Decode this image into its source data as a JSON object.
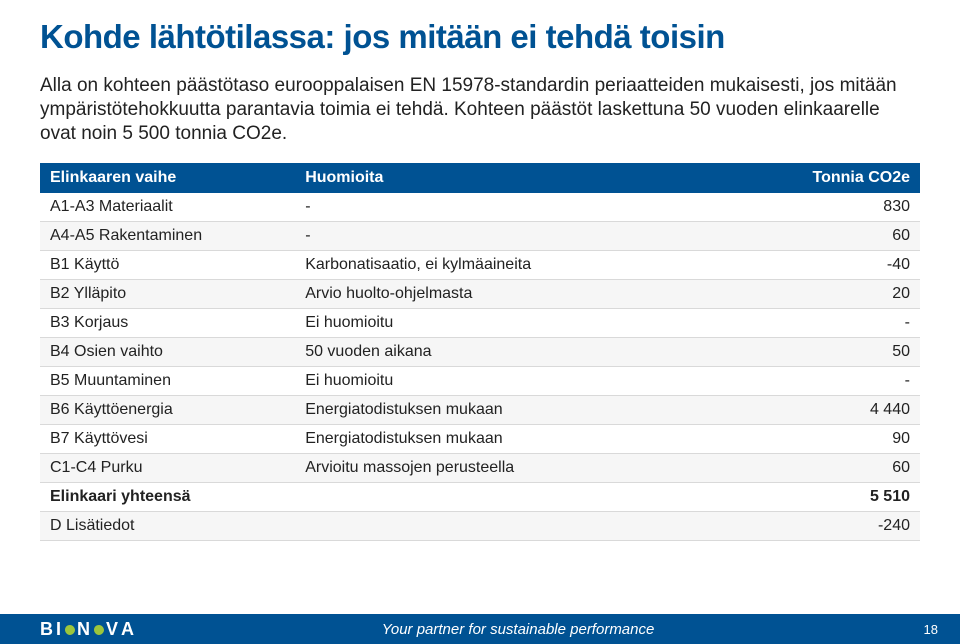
{
  "title": "Kohde lähtötilassa: jos mitään ei tehdä toisin",
  "intro": "Alla on kohteen päästötaso eurooppalaisen EN 15978-standardin periaatteiden mukaisesti, jos mitään ympäristötehokkuutta parantavia toimia ei tehdä. Kohteen päästöt laskettuna 50 vuoden elinkaarelle ovat noin 5 500 tonnia CO2e.",
  "table": {
    "headers": [
      "Elinkaaren vaihe",
      "Huomioita",
      "Tonnia CO2e"
    ],
    "header_bg": "#005293",
    "header_fg": "#ffffff",
    "font_size": 16,
    "rows": [
      {
        "phase": "A1-A3 Materiaalit",
        "note": "-",
        "value": "830",
        "bold": false
      },
      {
        "phase": "A4-A5 Rakentaminen",
        "note": "-",
        "value": "60",
        "bold": false
      },
      {
        "phase": "B1 Käyttö",
        "note": "Karbonatisaatio, ei kylmäaineita",
        "value": "-40",
        "bold": false
      },
      {
        "phase": "B2 Ylläpito",
        "note": "Arvio huolto-ohjelmasta",
        "value": "20",
        "bold": false
      },
      {
        "phase": "B3 Korjaus",
        "note": "Ei huomioitu",
        "value": "-",
        "bold": false
      },
      {
        "phase": "B4 Osien vaihto",
        "note": "50 vuoden aikana",
        "value": "50",
        "bold": false
      },
      {
        "phase": "B5 Muuntaminen",
        "note": "Ei huomioitu",
        "value": "-",
        "bold": false
      },
      {
        "phase": "B6 Käyttöenergia",
        "note": "Energiatodistuksen mukaan",
        "value": "4 440",
        "bold": false
      },
      {
        "phase": "B7 Käyttövesi",
        "note": "Energiatodistuksen mukaan",
        "value": "90",
        "bold": false
      },
      {
        "phase": "C1-C4 Purku",
        "note": "Arvioitu massojen perusteella",
        "value": "60",
        "bold": false
      },
      {
        "phase": "Elinkaari yhteensä",
        "note": "",
        "value": "5 510",
        "bold": true
      },
      {
        "phase": "D Lisätiedot",
        "note": "",
        "value": "-240",
        "bold": false
      }
    ]
  },
  "footer": {
    "brand_text": "BIONOVA",
    "tagline": "Your partner for sustainable performance",
    "page": "18",
    "bg": "#005293",
    "fg": "#ffffff"
  },
  "colors": {
    "title": "#005293",
    "text": "#222222",
    "row_alt": "#f6f6f6",
    "row_border": "#d9d9d9"
  }
}
